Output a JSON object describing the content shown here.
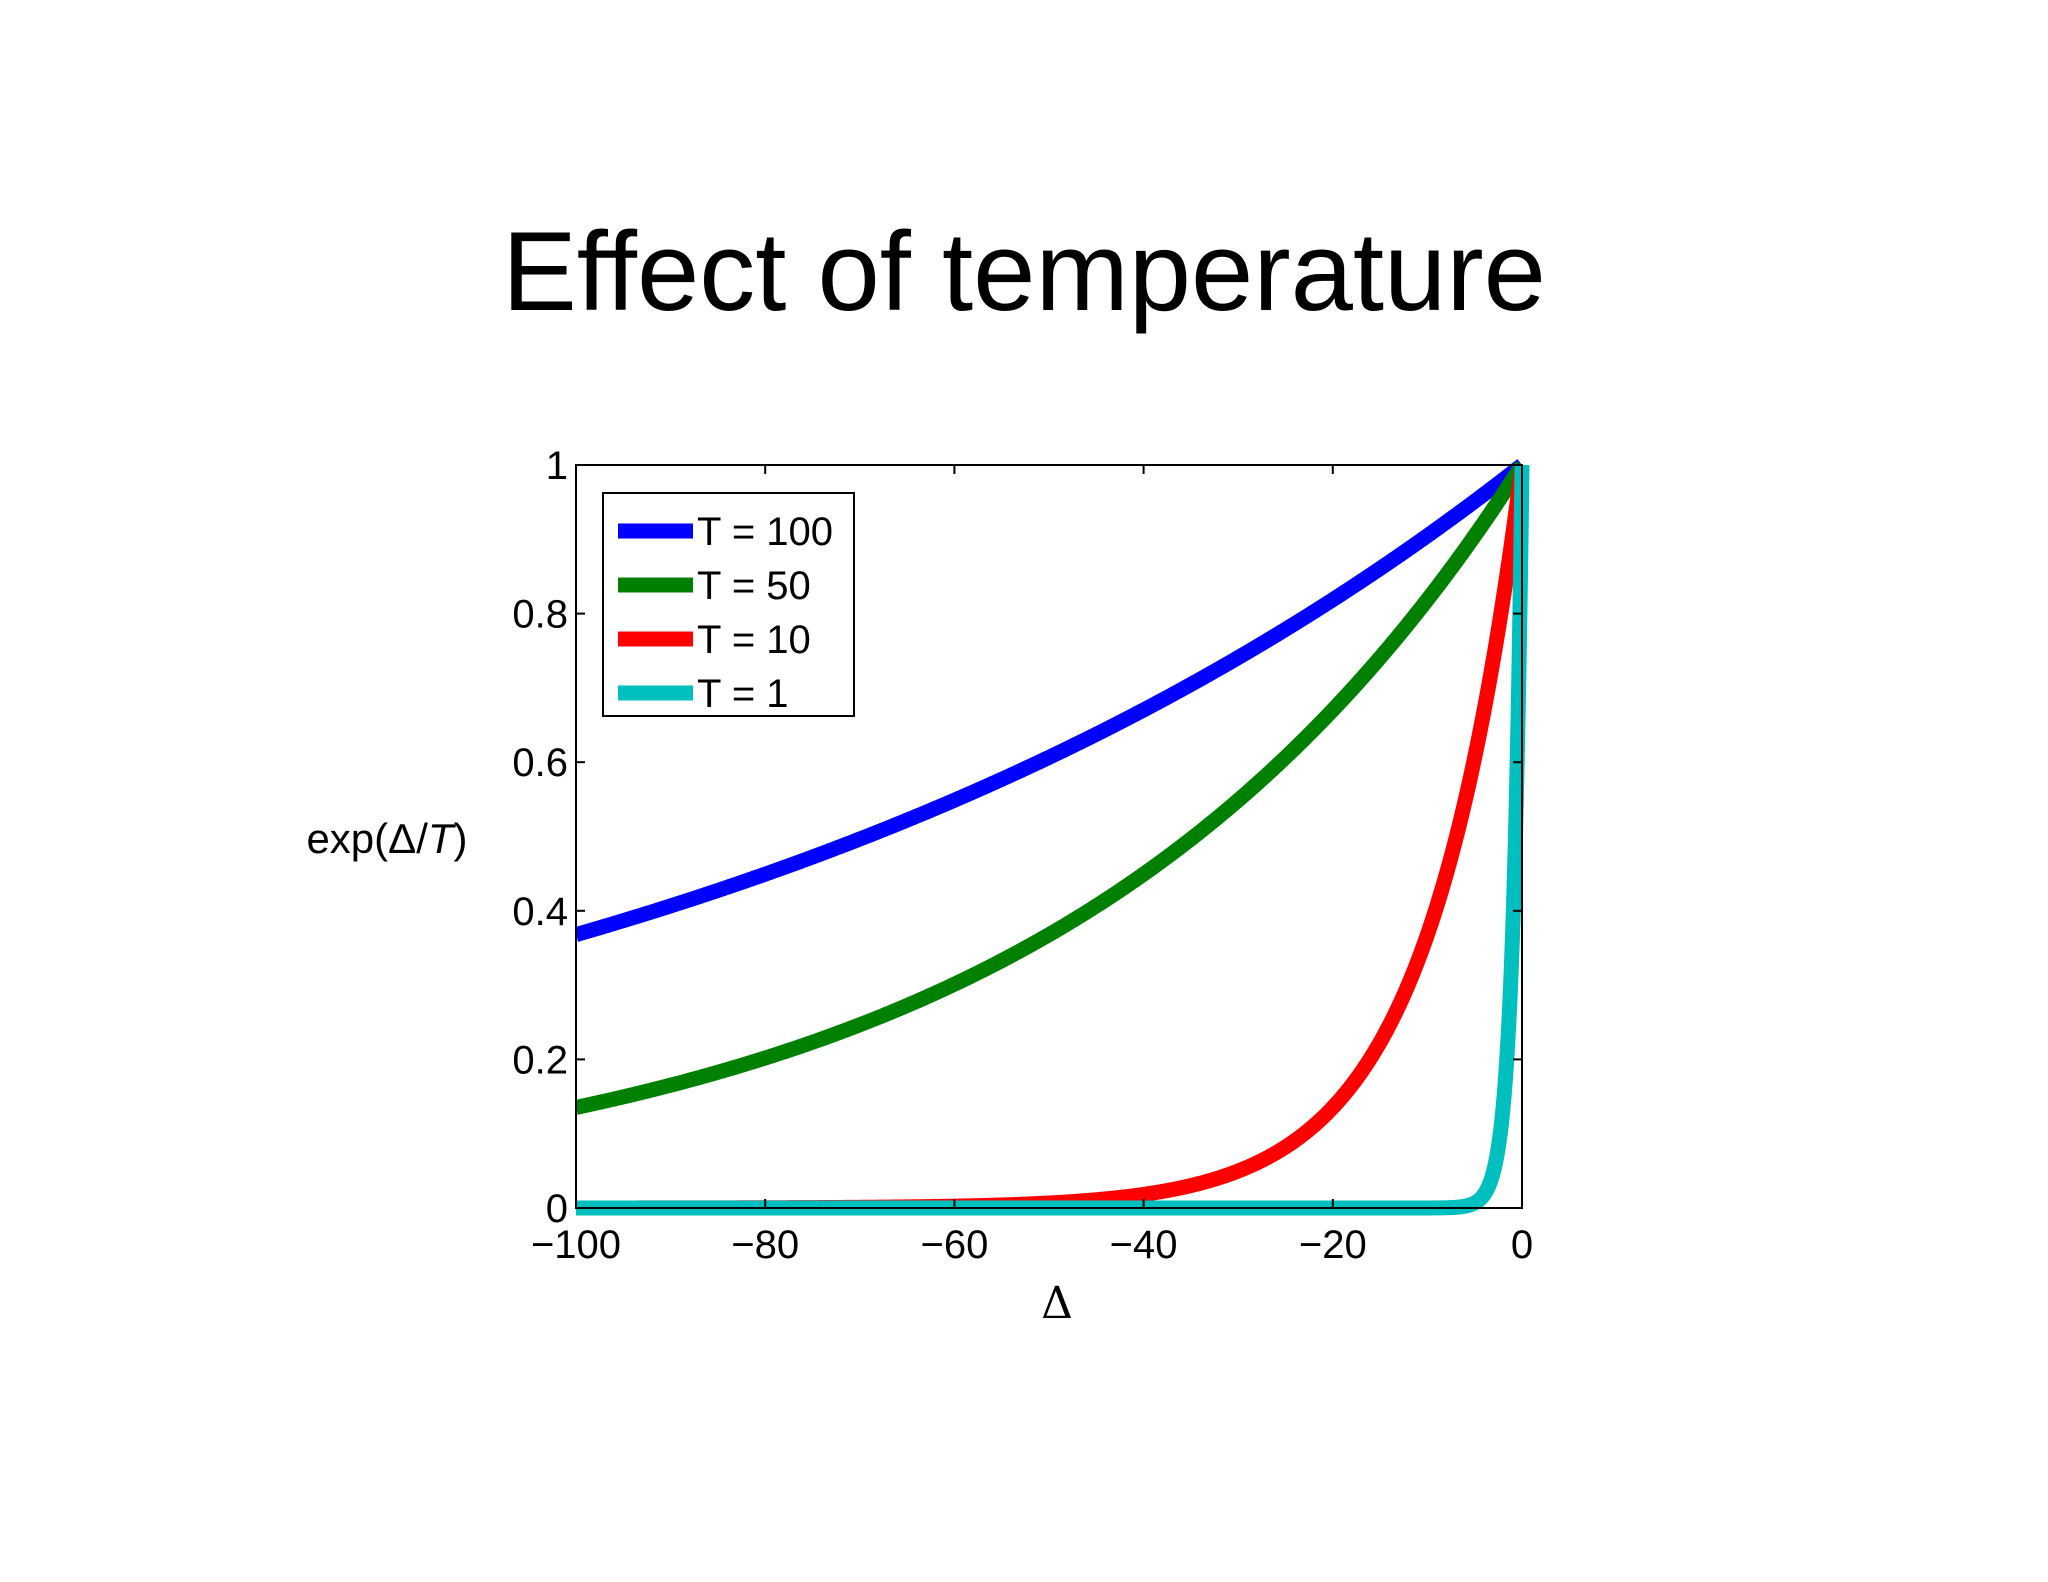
{
  "slide": {
    "title": "Effect of temperature"
  },
  "chart_data": {
    "type": "line",
    "xlabel": "Δ",
    "ylabel": {
      "prefix": "exp(Δ/",
      "italic": "T",
      "suffix": ")"
    },
    "xlim": [
      -100,
      0
    ],
    "ylim": [
      0,
      1
    ],
    "xticks": [
      -100,
      -80,
      -60,
      -40,
      -20,
      0
    ],
    "xtick_labels": [
      "−100",
      "−80",
      "−60",
      "−40",
      "−20",
      "0"
    ],
    "yticks": [
      0,
      0.2,
      0.4,
      0.6,
      0.8,
      1
    ],
    "ytick_labels": [
      "0",
      "0.2",
      "0.4",
      "0.6",
      "0.8",
      "1"
    ],
    "grid": false,
    "legend_position": "top-left",
    "function": "exp(x/T)",
    "series": [
      {
        "name": "T = 100",
        "T": 100,
        "color": "#0000ff",
        "x": [
          -100,
          -80,
          -60,
          -40,
          -20,
          0
        ],
        "values": [
          0.368,
          0.449,
          0.549,
          0.67,
          0.819,
          1.0
        ]
      },
      {
        "name": "T = 50",
        "T": 50,
        "color": "#008000",
        "x": [
          -100,
          -80,
          -60,
          -40,
          -20,
          0
        ],
        "values": [
          0.135,
          0.202,
          0.301,
          0.449,
          0.67,
          1.0
        ]
      },
      {
        "name": "T = 10",
        "T": 10,
        "color": "#ff0000",
        "x": [
          -100,
          -80,
          -60,
          -40,
          -20,
          -10,
          0
        ],
        "values": [
          0.0,
          0.0003,
          0.0025,
          0.018,
          0.135,
          0.368,
          1.0
        ]
      },
      {
        "name": "T = 1",
        "T": 1,
        "color": "#00bfbf",
        "x": [
          -100,
          -10,
          -4,
          -2,
          -1,
          0
        ],
        "values": [
          0.0,
          0.0,
          0.018,
          0.135,
          0.368,
          1.0
        ]
      }
    ]
  }
}
